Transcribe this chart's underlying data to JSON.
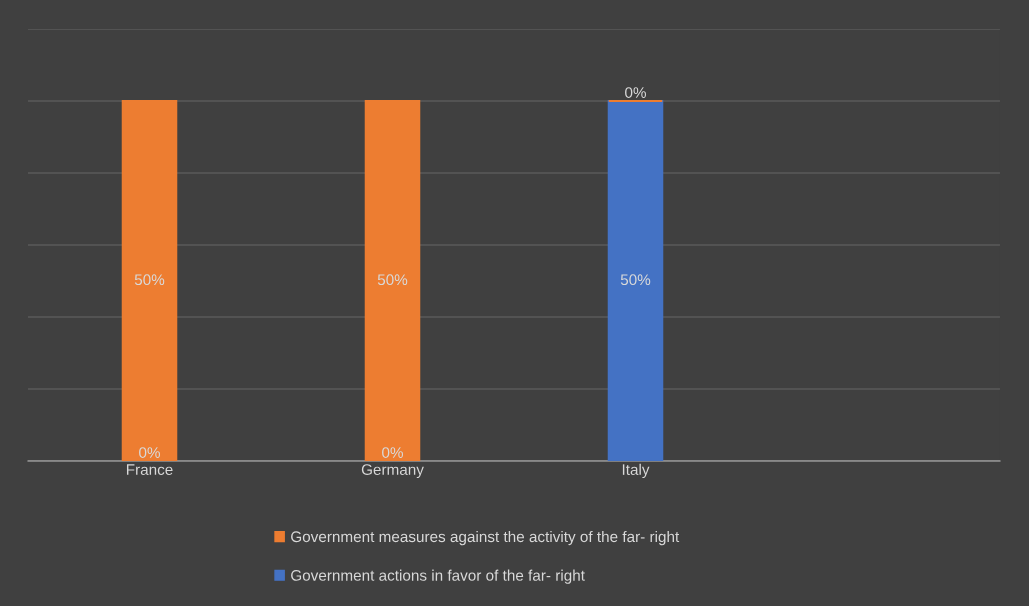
{
  "chart_data": {
    "type": "bar",
    "stacked": true,
    "categories": [
      "France",
      "Germany",
      "Italy",
      null
    ],
    "series": [
      {
        "name": "Government actions in favor of the far- right",
        "color": "#4472c4",
        "values": [
          0,
          0,
          50,
          null
        ],
        "value_labels": [
          "0%",
          "0%",
          "50%",
          null
        ]
      },
      {
        "name": "Government measures against the activity of the far- right",
        "color": "#ed7d31",
        "values": [
          50,
          50,
          0,
          null
        ],
        "value_labels": [
          "50%",
          "50%",
          "0%",
          null
        ]
      }
    ],
    "ylim": [
      0,
      60
    ],
    "yticks": [
      {
        "value": 0,
        "label": null
      },
      {
        "value": 10,
        "label": null
      },
      {
        "value": 20,
        "label": null
      },
      {
        "value": 30,
        "label": null
      },
      {
        "value": 40,
        "label": null
      },
      {
        "value": 50,
        "label": null
      },
      {
        "value": 60,
        "label": null
      }
    ],
    "tick_labels": "x",
    "grid": "y",
    "legend": "bottom"
  }
}
